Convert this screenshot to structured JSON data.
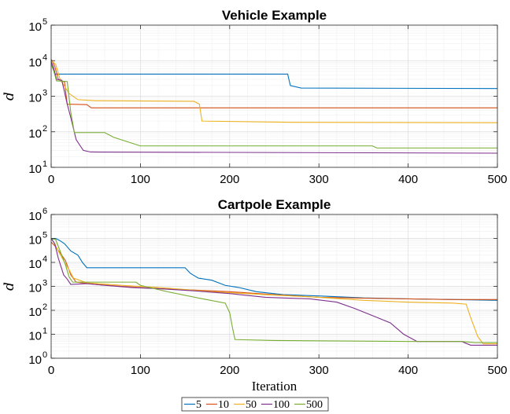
{
  "chart_data": [
    {
      "type": "line",
      "title": "Vehicle Example",
      "xlabel": "",
      "ylabel": "d",
      "xlim": [
        0,
        500
      ],
      "ylim": [
        10,
        100000
      ],
      "yscale": "log",
      "xticks": [
        "0",
        "100",
        "200",
        "300",
        "400",
        "500"
      ],
      "yticks": [
        {
          "base": "10",
          "exp": "1"
        },
        {
          "base": "10",
          "exp": "2"
        },
        {
          "base": "10",
          "exp": "3"
        },
        {
          "base": "10",
          "exp": "4"
        },
        {
          "base": "10",
          "exp": "5"
        }
      ],
      "grid": true,
      "series": [
        {
          "name": "5",
          "color": "#0072BD",
          "points": [
            [
              0,
              9000
            ],
            [
              2,
              7000
            ],
            [
              4,
              4200
            ],
            [
              265,
              4200
            ],
            [
              268,
              2000
            ],
            [
              280,
              1700
            ],
            [
              500,
              1650
            ]
          ]
        },
        {
          "name": "10",
          "color": "#D95319",
          "points": [
            [
              0,
              11000
            ],
            [
              4,
              7000
            ],
            [
              8,
              3000
            ],
            [
              15,
              2500
            ],
            [
              18,
              600
            ],
            [
              40,
              580
            ],
            [
              45,
              470
            ],
            [
              500,
              470
            ]
          ]
        },
        {
          "name": "50",
          "color": "#EDB120",
          "points": [
            [
              0,
              10000
            ],
            [
              5,
              8000
            ],
            [
              10,
              3000
            ],
            [
              20,
              1200
            ],
            [
              30,
              800
            ],
            [
              50,
              750
            ],
            [
              160,
              720
            ],
            [
              166,
              600
            ],
            [
              169,
              200
            ],
            [
              270,
              185
            ],
            [
              500,
              180
            ]
          ]
        },
        {
          "name": "100",
          "color": "#7E2F8E",
          "points": [
            [
              0,
              9500
            ],
            [
              3,
              6000
            ],
            [
              6,
              3000
            ],
            [
              12,
              2800
            ],
            [
              18,
              600
            ],
            [
              22,
              250
            ],
            [
              28,
              60
            ],
            [
              36,
              30
            ],
            [
              44,
              27
            ],
            [
              500,
              25
            ]
          ]
        },
        {
          "name": "500",
          "color": "#77AC30",
          "points": [
            [
              0,
              8000
            ],
            [
              3,
              5000
            ],
            [
              6,
              2700
            ],
            [
              18,
              2600
            ],
            [
              22,
              350
            ],
            [
              26,
              95
            ],
            [
              60,
              95
            ],
            [
              70,
              70
            ],
            [
              100,
              40
            ],
            [
              360,
              40
            ],
            [
              365,
              35
            ],
            [
              500,
              35
            ]
          ]
        }
      ]
    },
    {
      "type": "line",
      "title": "Cartpole Example",
      "xlabel": "Iteration",
      "ylabel": "d",
      "xlim": [
        0,
        500
      ],
      "ylim": [
        1,
        1000000
      ],
      "yscale": "log",
      "xticks": [
        "0",
        "100",
        "200",
        "300",
        "400",
        "500"
      ],
      "yticks": [
        {
          "base": "10",
          "exp": "0"
        },
        {
          "base": "10",
          "exp": "2"
        },
        {
          "base": "10",
          "exp": "4"
        },
        {
          "base": "10",
          "exp": "6"
        },
        {
          "base": "10",
          "exp": "1"
        },
        {
          "base": "10",
          "exp": "3"
        },
        {
          "base": "10",
          "exp": "5"
        }
      ],
      "grid": true,
      "series": [
        {
          "name": "5",
          "color": "#0072BD",
          "points": [
            [
              0,
              90000
            ],
            [
              5,
              100000
            ],
            [
              10,
              80000
            ],
            [
              15,
              60000
            ],
            [
              22,
              30000
            ],
            [
              30,
              20000
            ],
            [
              35,
              10000
            ],
            [
              40,
              6000
            ],
            [
              150,
              6000
            ],
            [
              156,
              3500
            ],
            [
              165,
              2200
            ],
            [
              180,
              1800
            ],
            [
              195,
              1100
            ],
            [
              210,
              900
            ],
            [
              230,
              600
            ],
            [
              260,
              450
            ],
            [
              300,
              400
            ],
            [
              350,
              330
            ],
            [
              400,
              300
            ],
            [
              450,
              280
            ],
            [
              500,
              260
            ]
          ]
        },
        {
          "name": "10",
          "color": "#D95319",
          "points": [
            [
              0,
              70000
            ],
            [
              4,
              50000
            ],
            [
              10,
              25000
            ],
            [
              16,
              12000
            ],
            [
              22,
              3000
            ],
            [
              28,
              1500
            ],
            [
              50,
              1200
            ],
            [
              80,
              1000
            ],
            [
              120,
              800
            ],
            [
              160,
              700
            ],
            [
              200,
              600
            ],
            [
              250,
              450
            ],
            [
              300,
              350
            ],
            [
              350,
              320
            ],
            [
              400,
              300
            ],
            [
              450,
              280
            ],
            [
              500,
              280
            ]
          ]
        },
        {
          "name": "50",
          "color": "#EDB120",
          "points": [
            [
              0,
              100000
            ],
            [
              4,
              60000
            ],
            [
              8,
              30000
            ],
            [
              15,
              10000
            ],
            [
              20,
              5000
            ],
            [
              25,
              2200
            ],
            [
              40,
              1400
            ],
            [
              80,
              1100
            ],
            [
              120,
              900
            ],
            [
              180,
              600
            ],
            [
              240,
              450
            ],
            [
              300,
              350
            ],
            [
              350,
              260
            ],
            [
              400,
              220
            ],
            [
              450,
              200
            ],
            [
              465,
              180
            ],
            [
              470,
              50
            ],
            [
              478,
              8
            ],
            [
              484,
              4
            ],
            [
              500,
              4
            ]
          ]
        },
        {
          "name": "100",
          "color": "#7E2F8E",
          "points": [
            [
              0,
              100000
            ],
            [
              4,
              60000
            ],
            [
              8,
              15000
            ],
            [
              14,
              3000
            ],
            [
              18,
              2000
            ],
            [
              22,
              1200
            ],
            [
              40,
              1300
            ],
            [
              60,
              1100
            ],
            [
              90,
              900
            ],
            [
              120,
              800
            ],
            [
              160,
              650
            ],
            [
              200,
              500
            ],
            [
              240,
              350
            ],
            [
              290,
              300
            ],
            [
              320,
              220
            ],
            [
              340,
              120
            ],
            [
              360,
              60
            ],
            [
              380,
              30
            ],
            [
              395,
              10
            ],
            [
              410,
              5
            ],
            [
              460,
              5
            ],
            [
              470,
              3.5
            ],
            [
              500,
              3.5
            ]
          ]
        },
        {
          "name": "500",
          "color": "#77AC30",
          "points": [
            [
              0,
              100000
            ],
            [
              5,
              90000
            ],
            [
              10,
              30000
            ],
            [
              16,
              8000
            ],
            [
              20,
              2500
            ],
            [
              24,
              1500
            ],
            [
              95,
              1500
            ],
            [
              100,
              1100
            ],
            [
              130,
              600
            ],
            [
              170,
              300
            ],
            [
              195,
              200
            ],
            [
              200,
              80
            ],
            [
              203,
              20
            ],
            [
              206,
              6
            ],
            [
              250,
              5.5
            ],
            [
              400,
              5
            ],
            [
              460,
              5
            ],
            [
              475,
              4.5
            ],
            [
              500,
              4.5
            ]
          ]
        }
      ]
    }
  ],
  "legend": {
    "entries": [
      "5",
      "10",
      "50",
      "100",
      "500"
    ],
    "colors": [
      "#0072BD",
      "#D95319",
      "#EDB120",
      "#7E2F8E",
      "#77AC30"
    ],
    "placement": "bottom-center"
  }
}
